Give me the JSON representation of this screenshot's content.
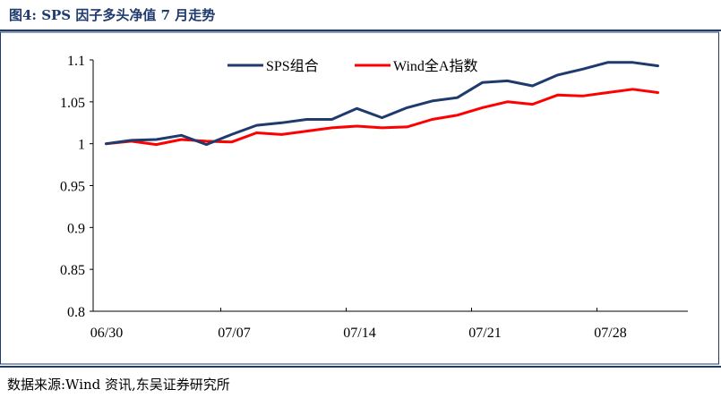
{
  "figure": {
    "title": "图4:  SPS 因子多头净值 7 月走势",
    "source": "数据来源:Wind 资讯,东吴证券研究所"
  },
  "colors": {
    "sps": "#1f3a6d",
    "wind_a": "#ff0000",
    "frame": "#1f3a6d"
  },
  "chart_data": {
    "type": "line",
    "xlabel": "",
    "ylabel": "",
    "ylim": [
      0.8,
      1.1
    ],
    "yticks": [
      "0.8",
      "0.85",
      "0.9",
      "0.95",
      "1",
      "1.05",
      "1.1"
    ],
    "x_tick_labels": [
      "06/30",
      "07/07",
      "07/14",
      "07/21",
      "07/28"
    ],
    "x_tick_index": [
      0,
      5,
      10,
      15,
      20
    ],
    "x": [
      "06/30",
      "07/01",
      "07/02",
      "07/03",
      "07/06",
      "07/07",
      "07/08",
      "07/09",
      "07/10",
      "07/13",
      "07/14",
      "07/15",
      "07/16",
      "07/17",
      "07/20",
      "07/21",
      "07/22",
      "07/23",
      "07/24",
      "07/27",
      "07/28",
      "07/29",
      "07/30"
    ],
    "legend_position": "top-right",
    "grid": false,
    "series": [
      {
        "name": "SPS组合",
        "color": "#1f3a6d",
        "values": [
          1.0,
          1.004,
          1.005,
          1.01,
          0.999,
          1.011,
          1.022,
          1.025,
          1.029,
          1.029,
          1.042,
          1.031,
          1.043,
          1.051,
          1.055,
          1.073,
          1.075,
          1.069,
          1.082,
          1.089,
          1.097,
          1.097,
          1.093
        ]
      },
      {
        "name": "Wind全A指数",
        "color": "#ff0000",
        "values": [
          1.0,
          1.003,
          0.999,
          1.005,
          1.003,
          1.002,
          1.013,
          1.011,
          1.015,
          1.019,
          1.021,
          1.019,
          1.02,
          1.029,
          1.034,
          1.043,
          1.05,
          1.047,
          1.058,
          1.057,
          1.061,
          1.065,
          1.061
        ]
      }
    ]
  }
}
